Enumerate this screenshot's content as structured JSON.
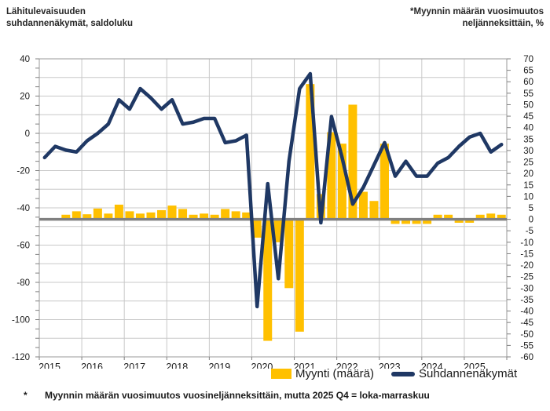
{
  "header": {
    "left_line1": "Lähitulevaisuuden",
    "left_line2": "suhdannenäkymät, saldoluku",
    "right_line1": "*Myynnin määrän vuosimuutos",
    "right_line2": "neljänneksittäin, %"
  },
  "legend": [
    {
      "label": "Myynti (määrä)",
      "type": "bar"
    },
    {
      "label": "Suhdannenäkymät",
      "type": "line"
    }
  ],
  "footnote": {
    "marker": "*",
    "text": "Myynnin määrän vuosimuutos vuosineljänneksittäin, mutta 2025 Q4 = loka-marraskuu"
  },
  "colors": {
    "bar": "#FFC000",
    "line": "#1F3864",
    "zero_line": "#808080",
    "grid": "#C8C8C8",
    "border": "#9a9a9a",
    "tick": "#808080",
    "text": "#1A1A1A"
  },
  "chart_data": {
    "type": "bar+line combo, dual axis",
    "frequency": "quarterly",
    "x_start": "2015 Q1",
    "x_end": "2025 Q4",
    "x_years": [
      2015,
      2016,
      2017,
      2018,
      2019,
      2020,
      2021,
      2022,
      2023,
      2024,
      2025
    ],
    "left_axis": {
      "title": "Lähitulevaisuuden suhdannenäkymät, saldoluku",
      "min": -120,
      "max": 40,
      "label_step": 20,
      "grid_step": 10,
      "minor_tick_step": 5,
      "ticks": [
        40,
        20,
        0,
        -20,
        -40,
        -60,
        -80,
        -100,
        -120
      ]
    },
    "right_axis": {
      "title": "Myynnin määrän vuosimuutos neljänneksittäin, %",
      "min": -60,
      "max": 70,
      "label_step": 5,
      "ticks": [
        70,
        65,
        60,
        55,
        50,
        45,
        40,
        35,
        30,
        25,
        20,
        15,
        10,
        5,
        0,
        -5,
        -10,
        -15,
        -20,
        -25,
        -30,
        -35,
        -40,
        -45,
        -50,
        -55,
        -60
      ],
      "zero_line": true
    },
    "grid": true,
    "legend_position": "bottom",
    "series": [
      {
        "name": "Myynti (määrä)",
        "type": "bar",
        "axis": "right",
        "color": "#FFC000",
        "values": [
          null,
          null,
          2,
          3.5,
          2.2,
          4.7,
          2.5,
          6.4,
          3.5,
          2.5,
          3,
          4,
          6,
          4.5,
          2,
          2.5,
          2,
          4.5,
          3.5,
          3,
          -8,
          -53,
          -10,
          -30,
          -49,
          59,
          11,
          38,
          33,
          50,
          12,
          8,
          33,
          -2,
          -2,
          -2,
          -2,
          2,
          2,
          -1.5,
          -1.5,
          2,
          2.5,
          2
        ]
      },
      {
        "name": "Suhdannenäkymät",
        "type": "line",
        "axis": "left",
        "color": "#1F3864",
        "values": [
          -13,
          -7,
          -9,
          -10,
          -4,
          0,
          5,
          18,
          13,
          24,
          19,
          13,
          18,
          5,
          6,
          8,
          8,
          -5,
          -4,
          -1,
          -93,
          -27,
          -78,
          -15,
          24,
          32,
          -48,
          9,
          -13,
          -38,
          -29,
          -17,
          -5,
          -23,
          -15,
          -23,
          -23,
          -16,
          -13,
          -7,
          -2,
          0,
          -10,
          -6
        ]
      }
    ]
  }
}
